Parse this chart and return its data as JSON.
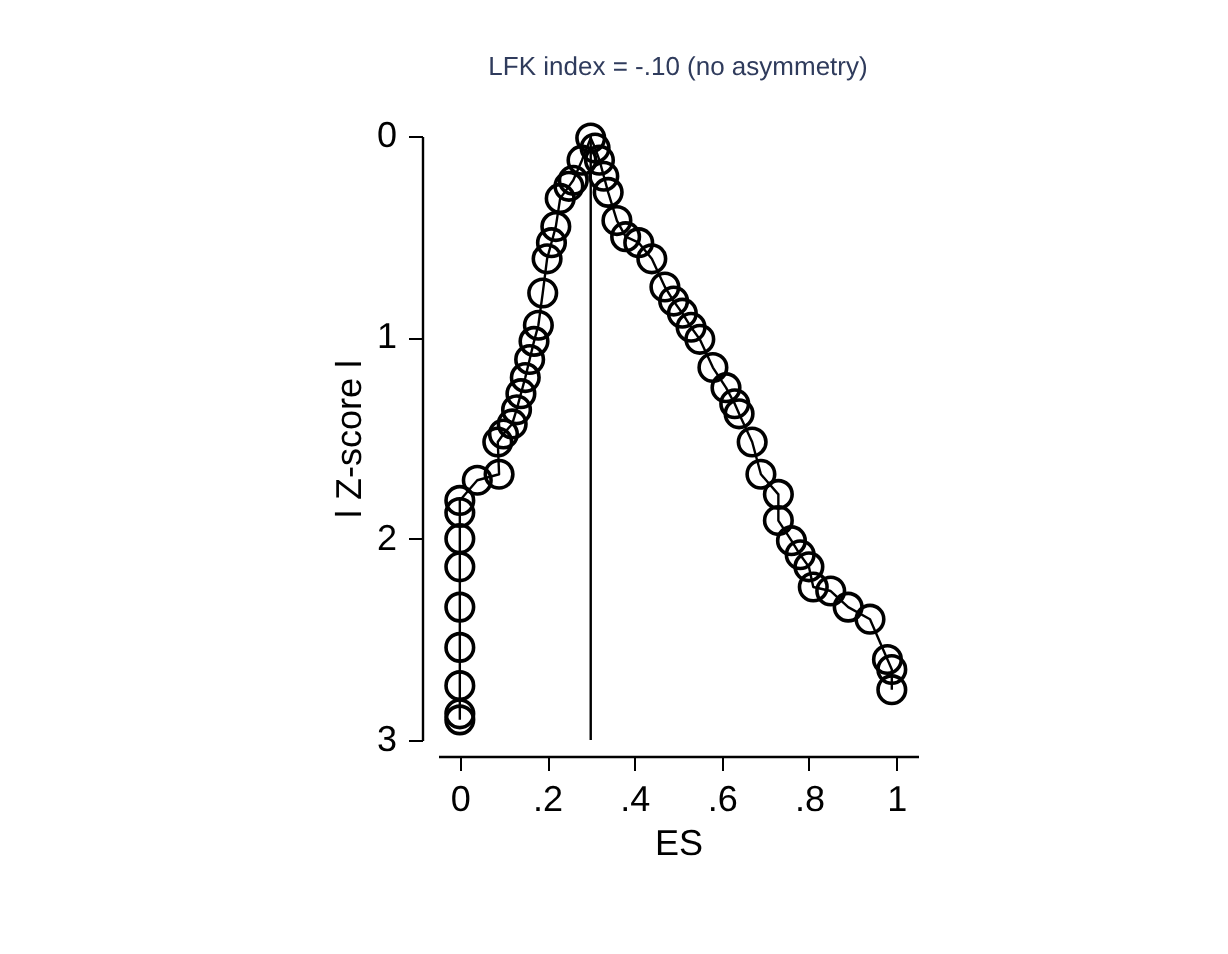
{
  "chart_data": {
    "type": "line",
    "title": "LFK index = -.10 (no asymmetry)",
    "xlabel": "ES",
    "ylabel": "l Z-score l",
    "x": [
      0,
      0,
      0,
      0,
      0,
      0,
      0,
      0,
      0,
      0.04,
      0.09,
      0.087,
      0.1,
      0.12,
      0.13,
      0.14,
      0.15,
      0.16,
      0.17,
      0.18,
      0.19,
      0.2,
      0.21,
      0.22,
      0.23,
      0.25,
      0.26,
      0.28,
      0.3,
      0.31,
      0.32,
      0.33,
      0.34,
      0.36,
      0.38,
      0.41,
      0.44,
      0.47,
      0.49,
      0.51,
      0.53,
      0.55,
      0.58,
      0.61,
      0.63,
      0.64,
      0.67,
      0.69,
      0.73,
      0.73,
      0.76,
      0.78,
      0.8,
      0.81,
      0.85,
      0.89,
      0.94,
      0.98,
      0.99,
      0.99
    ],
    "series": [
      {
        "color": "#000000",
        "values": [
          2.9,
          2.87,
          2.73,
          2.54,
          2.34,
          2.14,
          2.0,
          1.87,
          1.81,
          1.71,
          1.68,
          1.52,
          1.48,
          1.43,
          1.36,
          1.28,
          1.2,
          1.11,
          1.02,
          0.94,
          0.78,
          0.61,
          0.53,
          0.45,
          0.31,
          0.25,
          0.22,
          0.12,
          0.01,
          0.06,
          0.12,
          0.2,
          0.28,
          0.42,
          0.5,
          0.53,
          0.61,
          0.75,
          0.82,
          0.88,
          0.95,
          1.01,
          1.15,
          1.25,
          1.33,
          1.38,
          1.52,
          1.68,
          1.78,
          1.91,
          2.01,
          2.08,
          2.14,
          2.24,
          2.26,
          2.34,
          2.4,
          2.6,
          2.65,
          2.75
        ]
      }
    ],
    "xlim": [
      -0.05,
      1.05
    ],
    "ylim": [
      3,
      0
    ],
    "xticks": [
      0,
      {
        "value": 0.2,
        "label": ".2"
      },
      {
        "value": 0.4,
        "label": ".4"
      },
      {
        "value": 0.6,
        "label": ".6"
      },
      {
        "value": 0.8,
        "label": ".8"
      },
      1
    ],
    "yticks": [
      0,
      1,
      2,
      3
    ],
    "ref_lines": [
      {
        "axis": "x",
        "value": 0.3,
        "color": "#000000"
      }
    ],
    "marker": "circle",
    "grid": false
  }
}
